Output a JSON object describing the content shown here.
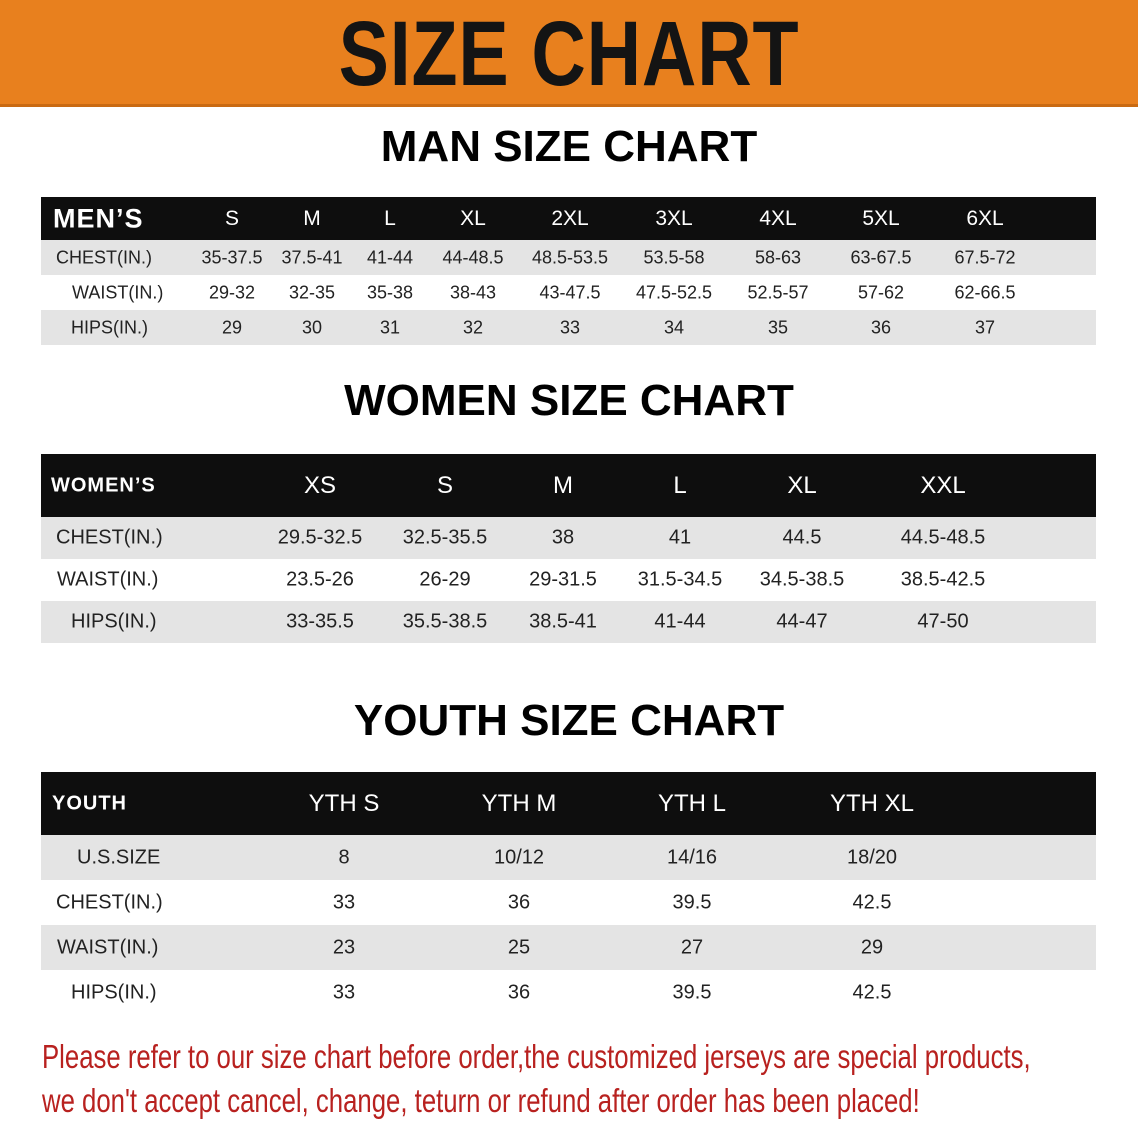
{
  "banner": {
    "title": "SIZE CHART",
    "color": "#e8801e"
  },
  "men": {
    "title": "MAN SIZE CHART",
    "header": "MEN’S",
    "sizes": [
      "S",
      "M",
      "L",
      "XL",
      "2XL",
      "3XL",
      "4XL",
      "5XL",
      "6XL"
    ],
    "rows": [
      {
        "label": "CHEST(IN.)",
        "values": [
          "35-37.5",
          "37.5-41",
          "41-44",
          "44-48.5",
          "48.5-53.5",
          "53.5-58",
          "58-63",
          "63-67.5",
          "67.5-72"
        ]
      },
      {
        "label": "WAIST(IN.)",
        "values": [
          "29-32",
          "32-35",
          "35-38",
          "38-43",
          "43-47.5",
          "47.5-52.5",
          "52.5-57",
          "57-62",
          "62-66.5"
        ]
      },
      {
        "label": "HIPS(IN.)",
        "values": [
          "29",
          "30",
          "31",
          "32",
          "33",
          "34",
          "35",
          "36",
          "37"
        ]
      }
    ]
  },
  "women": {
    "title": "WOMEN SIZE CHART",
    "header": "WOMEN’S",
    "sizes": [
      "XS",
      "S",
      "M",
      "L",
      "XL",
      "XXL"
    ],
    "rows": [
      {
        "label": "CHEST(IN.)",
        "values": [
          "29.5-32.5",
          "32.5-35.5",
          "38",
          "41",
          "44.5",
          "44.5-48.5"
        ]
      },
      {
        "label": "WAIST(IN.)",
        "values": [
          "23.5-26",
          "26-29",
          "29-31.5",
          "31.5-34.5",
          "34.5-38.5",
          "38.5-42.5"
        ]
      },
      {
        "label": "HIPS(IN.)",
        "values": [
          "33-35.5",
          "35.5-38.5",
          "38.5-41",
          "41-44",
          "44-47",
          "47-50"
        ]
      }
    ]
  },
  "youth": {
    "title": "YOUTH SIZE CHART",
    "header": "YOUTH",
    "sizes": [
      "YTH S",
      "YTH M",
      "YTH L",
      "YTH XL"
    ],
    "rows": [
      {
        "label": "U.S.SIZE",
        "values": [
          "8",
          "10/12",
          "14/16",
          "18/20"
        ]
      },
      {
        "label": "CHEST(IN.)",
        "values": [
          "33",
          "36",
          "39.5",
          "42.5"
        ]
      },
      {
        "label": "WAIST(IN.)",
        "values": [
          "23",
          "25",
          "27",
          "29"
        ]
      },
      {
        "label": "HIPS(IN.)",
        "values": [
          "33",
          "36",
          "39.5",
          "42.5"
        ]
      }
    ]
  },
  "notice": {
    "line1": "Please refer to our size chart before order,the customized jerseys are special products,",
    "line2": "we don't accept cancel, change, teturn or refund after order has been placed!",
    "color": "#b8211f"
  }
}
